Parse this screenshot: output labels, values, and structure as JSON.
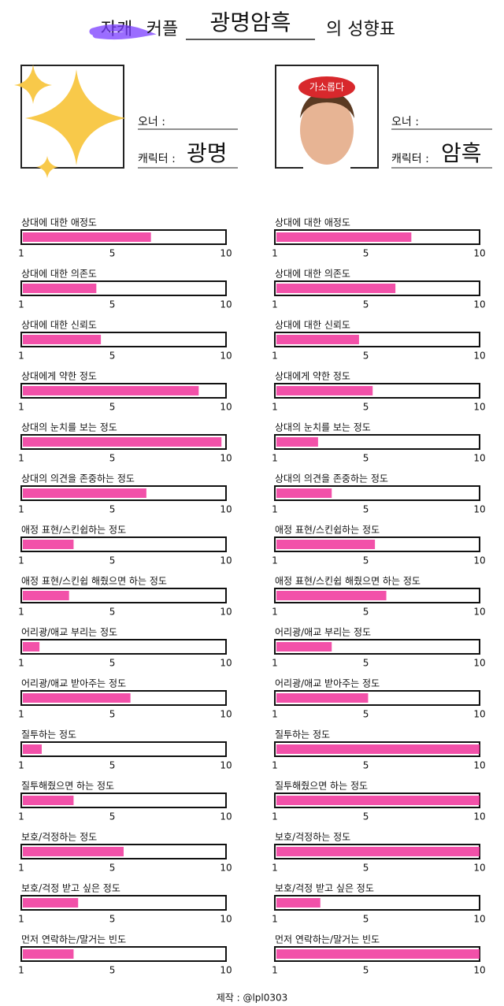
{
  "header": {
    "strike": "자캐",
    "couple_label": "커플",
    "couple_name": "광명암흑",
    "suffix": "의 성향표"
  },
  "profiles": [
    {
      "owner_label": "오너 :",
      "char_label": "캐릭터 :",
      "char_name": "광명"
    },
    {
      "owner_label": "오너 :",
      "char_label": "캐릭터 :",
      "char_name": "암흑",
      "badge": "가소롭다"
    }
  ],
  "scale": {
    "min": 1,
    "max": 10,
    "ticks": [
      1,
      5,
      10
    ]
  },
  "questions": [
    {
      "label": "상대에 대한 애정도",
      "values": [
        6.7,
        7.0
      ]
    },
    {
      "label": "상대에 대한 의존도",
      "values": [
        4.3,
        6.3
      ]
    },
    {
      "label": "상대에 대한 신뢰도",
      "values": [
        4.5,
        4.7
      ]
    },
    {
      "label": "상대에게 약한 정도",
      "values": [
        8.8,
        5.3
      ]
    },
    {
      "label": "상대의 눈치를 보는 정도",
      "values": [
        9.8,
        2.9
      ]
    },
    {
      "label": "상대의 의견을 존중하는 정도",
      "values": [
        6.5,
        3.5
      ]
    },
    {
      "label": "애정 표현/스킨쉽하는 정도",
      "values": [
        3.3,
        5.4
      ]
    },
    {
      "label": "애정 표현/스킨쉽 해줬으면 하는 정도",
      "values": [
        3.1,
        5.9
      ]
    },
    {
      "label": "어리광/애교 부리는 정도",
      "values": [
        1.8,
        3.5
      ]
    },
    {
      "label": "어리광/애교 받아주는 정도",
      "values": [
        5.8,
        5.1
      ]
    },
    {
      "label": "질투하는 정도",
      "values": [
        1.9,
        10
      ]
    },
    {
      "label": "질투해줬으면 하는 정도",
      "values": [
        3.3,
        10
      ]
    },
    {
      "label": "보호/걱정하는 정도",
      "values": [
        5.5,
        10
      ]
    },
    {
      "label": "보호/걱정 받고 싶은 정도",
      "values": [
        3.5,
        3.0
      ]
    },
    {
      "label": "먼저 연락하는/말거는 빈도",
      "values": [
        3.3,
        10
      ]
    }
  ],
  "footer": "제작 : @lpl0303"
}
